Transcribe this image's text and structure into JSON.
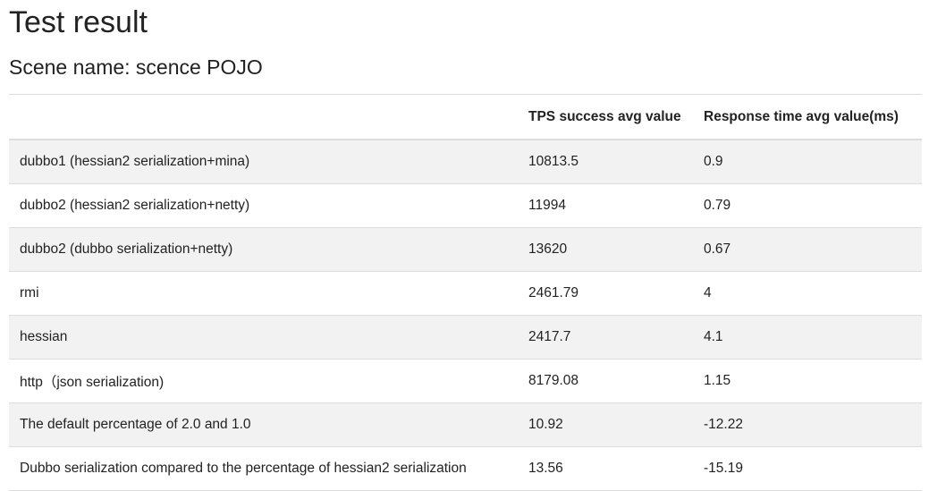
{
  "header": {
    "title": "Test result",
    "subtitle": "Scene name: scence POJO"
  },
  "table": {
    "headers": [
      "TPS success avg value",
      "Response time avg value(ms)"
    ],
    "rows": [
      [
        "dubbo1 (hessian2 serialization+mina)",
        "10813.5",
        "0.9"
      ],
      [
        "dubbo2 (hessian2 serialization+netty)",
        "11994",
        "0.79"
      ],
      [
        "dubbo2 (dubbo serialization+netty)",
        "13620",
        "0.67"
      ],
      [
        "rmi",
        "2461.79",
        "4"
      ],
      [
        "hessian",
        "2417.7",
        "4.1"
      ],
      [
        "http（json serialization)",
        "8179.08",
        "1.15"
      ],
      [
        "The default percentage of 2.0 and 1.0",
        "10.92",
        "-12.22"
      ],
      [
        "Dubbo serialization compared to the percentage of hessian2 serialization",
        "13.56",
        "-15.19"
      ]
    ]
  }
}
